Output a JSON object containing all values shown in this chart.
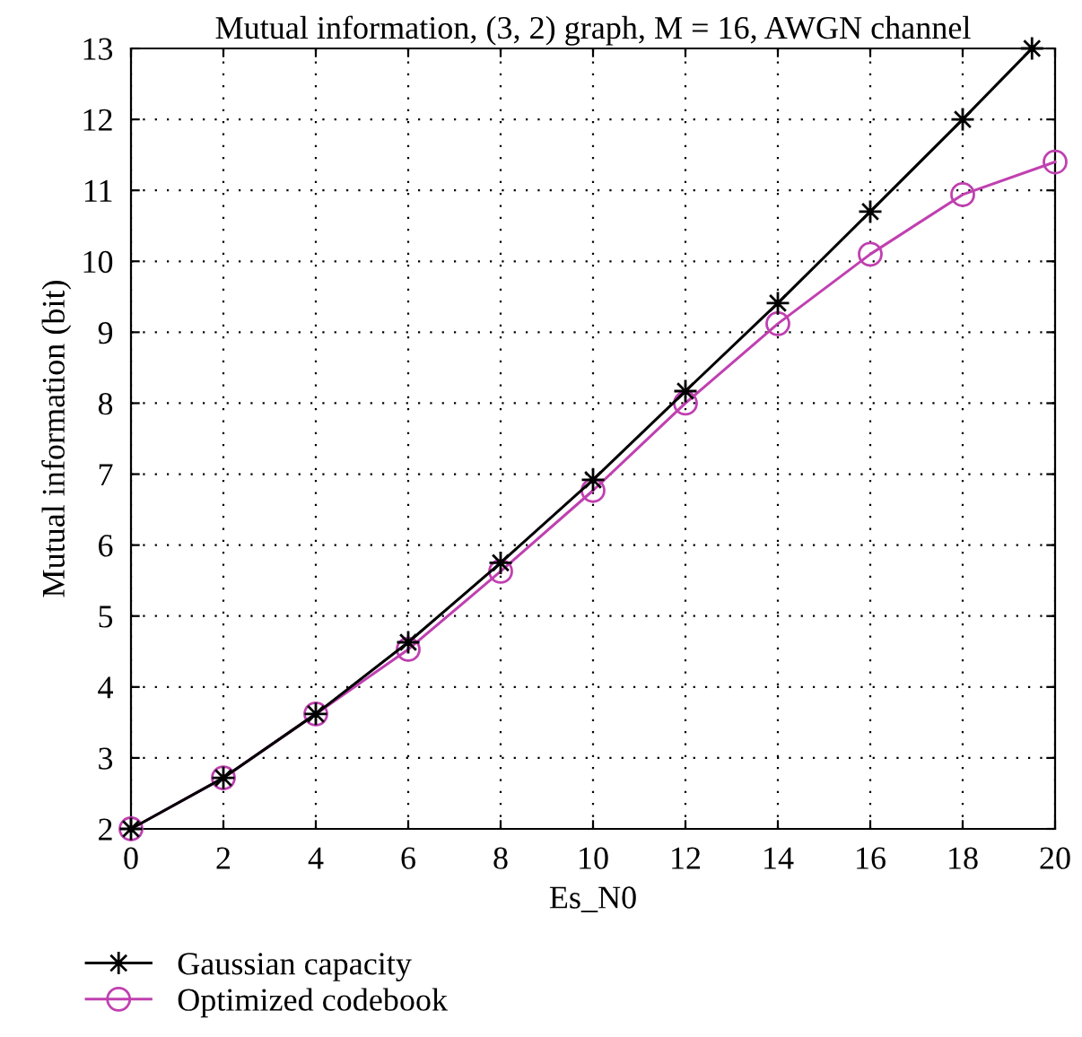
{
  "chart_data": {
    "type": "line",
    "title": "Mutual information, (3, 2) graph, M = 16, AWGN channel",
    "xlabel": "Es_N0",
    "ylabel": "Mutual information (bit)",
    "xlim": [
      0,
      20
    ],
    "xticks": [
      0,
      2,
      4,
      6,
      8,
      10,
      12,
      14,
      16,
      18,
      20
    ],
    "ylim": [
      2,
      13
    ],
    "yticks": [
      2,
      3,
      4,
      5,
      6,
      7,
      8,
      9,
      10,
      11,
      12,
      13
    ],
    "grid": true,
    "legend": "bottom",
    "series": [
      {
        "name": "Gaussian capacity",
        "color": "#000000",
        "marker": "star",
        "x": [
          0,
          2,
          4,
          6,
          8,
          10,
          12,
          14,
          16,
          18,
          19.5
        ],
        "values": [
          2.0,
          2.72,
          3.62,
          4.63,
          5.75,
          6.92,
          8.17,
          9.41,
          10.7,
          12.0,
          13.0
        ]
      },
      {
        "name": "Optimized codebook",
        "color": "#c040b0",
        "marker": "circle",
        "x": [
          0,
          2,
          4,
          6,
          8,
          10,
          12,
          14,
          16,
          18,
          20
        ],
        "values": [
          2.0,
          2.72,
          3.62,
          4.53,
          5.63,
          6.77,
          8.0,
          9.12,
          10.1,
          10.94,
          11.4
        ]
      }
    ]
  }
}
